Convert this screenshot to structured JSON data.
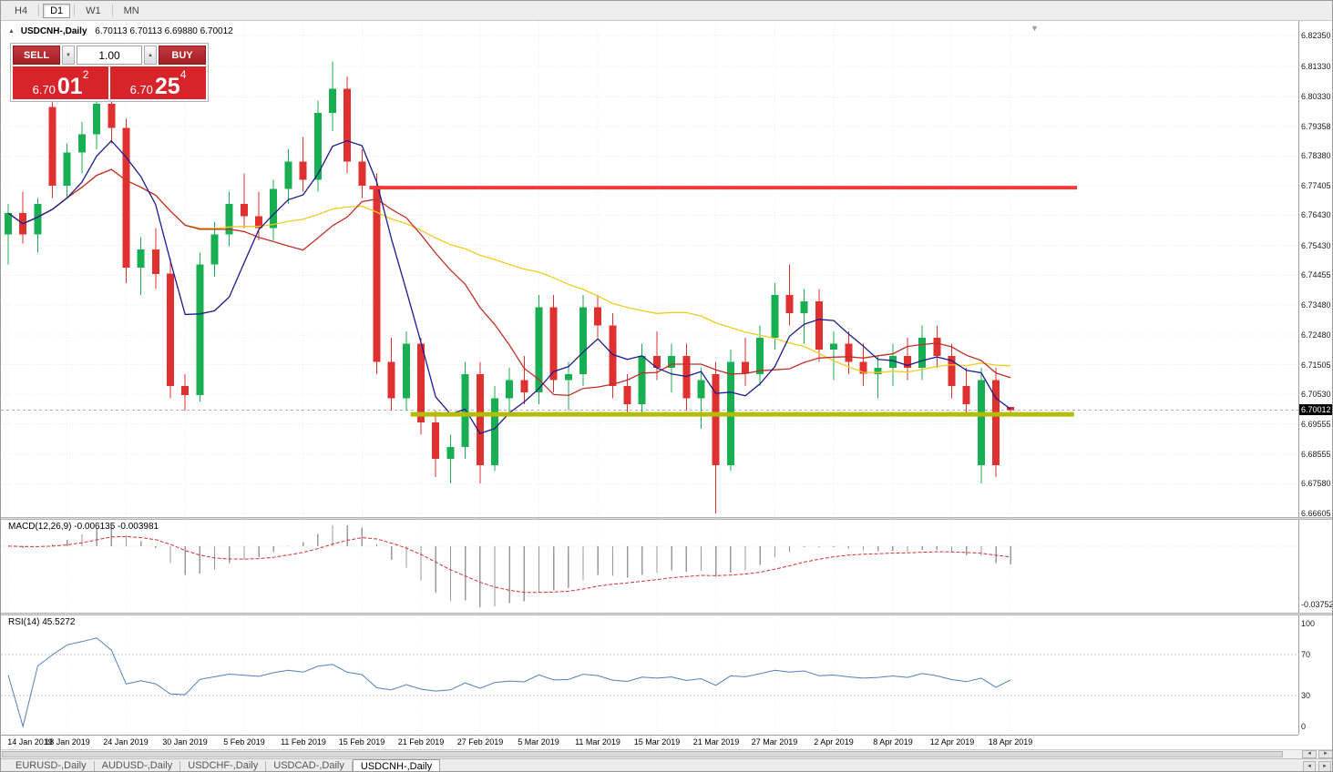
{
  "window": {
    "toolbar": {
      "timeframes": [
        {
          "label": "H4",
          "active": false
        },
        {
          "label": "D1",
          "active": true
        },
        {
          "label": "W1",
          "active": false
        },
        {
          "label": "MN",
          "active": false
        }
      ]
    },
    "tabs": [
      {
        "label": "EURUSD-,Daily",
        "active": false
      },
      {
        "label": "AUDUSD-,Daily",
        "active": false
      },
      {
        "label": "USDCHF-,Daily",
        "active": false
      },
      {
        "label": "USDCAD-,Daily",
        "active": false
      },
      {
        "label": "USDCNH-,Daily",
        "active": true
      }
    ]
  },
  "chart": {
    "symbol_line": "USDCNH-,Daily",
    "ohlc_line": "6.70113 6.70113 6.69880 6.70012",
    "current_price": "6.70012",
    "price_axis": [
      "6.82350",
      "6.81330",
      "6.80330",
      "6.79358",
      "6.78380",
      "6.77405",
      "6.76430",
      "6.75430",
      "6.74455",
      "6.73480",
      "6.72480",
      "6.71505",
      "6.70530",
      "6.69555",
      "6.68555",
      "6.67580",
      "6.66605"
    ]
  },
  "trade_panel": {
    "sell_label": "SELL",
    "buy_label": "BUY",
    "volume": "1.00",
    "sell_price": {
      "prefix": "6.70",
      "big": "01",
      "sup": "2"
    },
    "buy_price": {
      "prefix": "6.70",
      "big": "25",
      "sup": "4"
    }
  },
  "macd": {
    "label": "MACD(12,26,9) -0.006135 -0.003981",
    "axis_min_label": "-0.03752"
  },
  "rsi": {
    "label": "RSI(14) 45.5272",
    "axis_labels": [
      "100",
      "70",
      "30",
      "0"
    ]
  },
  "icons": {
    "collapse": "▲",
    "shift_marker": "▼",
    "spinner_down": "▼",
    "spinner_up": "▲",
    "arrow_left": "◄",
    "arrow_right": "►"
  },
  "chart_data": {
    "type": "candlestick",
    "symbol": "USDCNH-",
    "timeframe": "Daily",
    "y_range": [
      6.66605,
      6.8235
    ],
    "x_tick_indices": [
      0,
      4,
      8,
      12,
      16,
      20,
      24,
      28,
      32,
      36,
      40,
      44,
      48,
      52,
      56,
      60,
      64,
      68
    ],
    "x_tick_labels": [
      "14 Jan 2019",
      "18 Jan 2019",
      "24 Jan 2019",
      "30 Jan 2019",
      "5 Feb 2019",
      "11 Feb 2019",
      "15 Feb 2019",
      "21 Feb 2019",
      "27 Feb 2019",
      "5 Mar 2019",
      "11 Mar 2019",
      "15 Mar 2019",
      "21 Mar 2019",
      "27 Mar 2019",
      "2 Apr 2019",
      "8 Apr 2019",
      "12 Apr 2019",
      "18 Apr 2019"
    ],
    "candles": [
      [
        6.758,
        6.768,
        6.748,
        6.765
      ],
      [
        6.765,
        6.772,
        6.755,
        6.758
      ],
      [
        6.758,
        6.77,
        6.752,
        6.768
      ],
      [
        6.8,
        6.803,
        6.77,
        6.774
      ],
      [
        6.774,
        6.788,
        6.77,
        6.785
      ],
      [
        6.785,
        6.795,
        6.778,
        6.791
      ],
      [
        6.791,
        6.805,
        6.786,
        6.801
      ],
      [
        6.801,
        6.806,
        6.788,
        6.793
      ],
      [
        6.793,
        6.796,
        6.742,
        6.747
      ],
      [
        6.747,
        6.757,
        6.738,
        6.753
      ],
      [
        6.753,
        6.76,
        6.74,
        6.745
      ],
      [
        6.745,
        6.75,
        6.704,
        6.708
      ],
      [
        6.708,
        6.712,
        6.7,
        6.705
      ],
      [
        6.705,
        6.752,
        6.703,
        6.748
      ],
      [
        6.748,
        6.762,
        6.744,
        6.758
      ],
      [
        6.758,
        6.772,
        6.754,
        6.768
      ],
      [
        6.768,
        6.778,
        6.76,
        6.764
      ],
      [
        6.764,
        6.772,
        6.756,
        6.76
      ],
      [
        6.76,
        6.776,
        6.756,
        6.773
      ],
      [
        6.773,
        6.786,
        6.768,
        6.782
      ],
      [
        6.782,
        6.79,
        6.772,
        6.776
      ],
      [
        6.776,
        6.802,
        6.772,
        6.798
      ],
      [
        6.798,
        6.815,
        6.792,
        6.806
      ],
      [
        6.806,
        6.81,
        6.778,
        6.782
      ],
      [
        6.782,
        6.786,
        6.77,
        6.774
      ],
      [
        6.774,
        6.778,
        6.712,
        6.716
      ],
      [
        6.716,
        6.724,
        6.7,
        6.704
      ],
      [
        6.704,
        6.726,
        6.7,
        6.722
      ],
      [
        6.722,
        6.724,
        6.692,
        6.696
      ],
      [
        6.696,
        6.7,
        6.678,
        6.684
      ],
      [
        6.684,
        6.692,
        6.676,
        6.688
      ],
      [
        6.688,
        6.716,
        6.684,
        6.712
      ],
      [
        6.712,
        6.716,
        6.676,
        6.682
      ],
      [
        6.682,
        6.708,
        6.68,
        6.704
      ],
      [
        6.704,
        6.714,
        6.698,
        6.71
      ],
      [
        6.71,
        6.718,
        6.702,
        6.706
      ],
      [
        6.706,
        6.738,
        6.702,
        6.734
      ],
      [
        6.734,
        6.738,
        6.706,
        6.71
      ],
      [
        6.71,
        6.716,
        6.7,
        6.712
      ],
      [
        6.712,
        6.738,
        6.708,
        6.734
      ],
      [
        6.734,
        6.738,
        6.724,
        6.728
      ],
      [
        6.728,
        6.732,
        6.704,
        6.708
      ],
      [
        6.708,
        6.712,
        6.698,
        6.702
      ],
      [
        6.702,
        6.722,
        6.698,
        6.718
      ],
      [
        6.718,
        6.726,
        6.71,
        6.714
      ],
      [
        6.714,
        6.722,
        6.706,
        6.718
      ],
      [
        6.718,
        6.722,
        6.7,
        6.704
      ],
      [
        6.704,
        6.714,
        6.694,
        6.71
      ],
      [
        6.712,
        6.716,
        6.666,
        6.682
      ],
      [
        6.682,
        6.72,
        6.68,
        6.716
      ],
      [
        6.716,
        6.724,
        6.708,
        6.712
      ],
      [
        6.712,
        6.728,
        6.708,
        6.724
      ],
      [
        6.724,
        6.742,
        6.72,
        6.738
      ],
      [
        6.738,
        6.748,
        6.728,
        6.732
      ],
      [
        6.732,
        6.74,
        6.722,
        6.736
      ],
      [
        6.736,
        6.74,
        6.716,
        6.72
      ],
      [
        6.72,
        6.726,
        6.71,
        6.722
      ],
      [
        6.722,
        6.726,
        6.712,
        6.716
      ],
      [
        6.716,
        6.722,
        6.708,
        6.712
      ],
      [
        6.712,
        6.718,
        6.704,
        6.714
      ],
      [
        6.714,
        6.722,
        6.708,
        6.718
      ],
      [
        6.718,
        6.724,
        6.71,
        6.714
      ],
      [
        6.714,
        6.728,
        6.71,
        6.724
      ],
      [
        6.724,
        6.728,
        6.714,
        6.718
      ],
      [
        6.718,
        6.722,
        6.704,
        6.708
      ],
      [
        6.708,
        6.714,
        6.698,
        6.702
      ],
      [
        6.682,
        6.714,
        6.676,
        6.71
      ],
      [
        6.71,
        6.714,
        6.678,
        6.682
      ],
      [
        6.70113,
        6.70113,
        6.6988,
        6.70012
      ]
    ],
    "ma_periods": {
      "fast": 5,
      "medium": 13,
      "slow": 34
    },
    "macd_params": [
      12,
      26,
      9
    ],
    "rsi_period": 14,
    "rsi_levels": [
      30,
      70
    ],
    "hlines": [
      {
        "price": 6.7734,
        "color": "#ef3b3b",
        "width": 4,
        "from_index": 24.5,
        "to_index": 72.5
      },
      {
        "price": 6.6987,
        "color": "#b4bc0a",
        "width": 5,
        "from_index": 27.3,
        "to_index": 72.3
      }
    ],
    "colors": {
      "up": "#17af52",
      "down": "#e03131",
      "ma_fast": "#1b1b8f",
      "ma_medium": "#c03028",
      "ma_slow": "#f0cb25",
      "macd_hist": "#9a9a9a",
      "macd_signal": "#cf3333",
      "rsi": "#4f81bd",
      "grid": "#ececec"
    },
    "legend_position": "none",
    "grid": true
  }
}
